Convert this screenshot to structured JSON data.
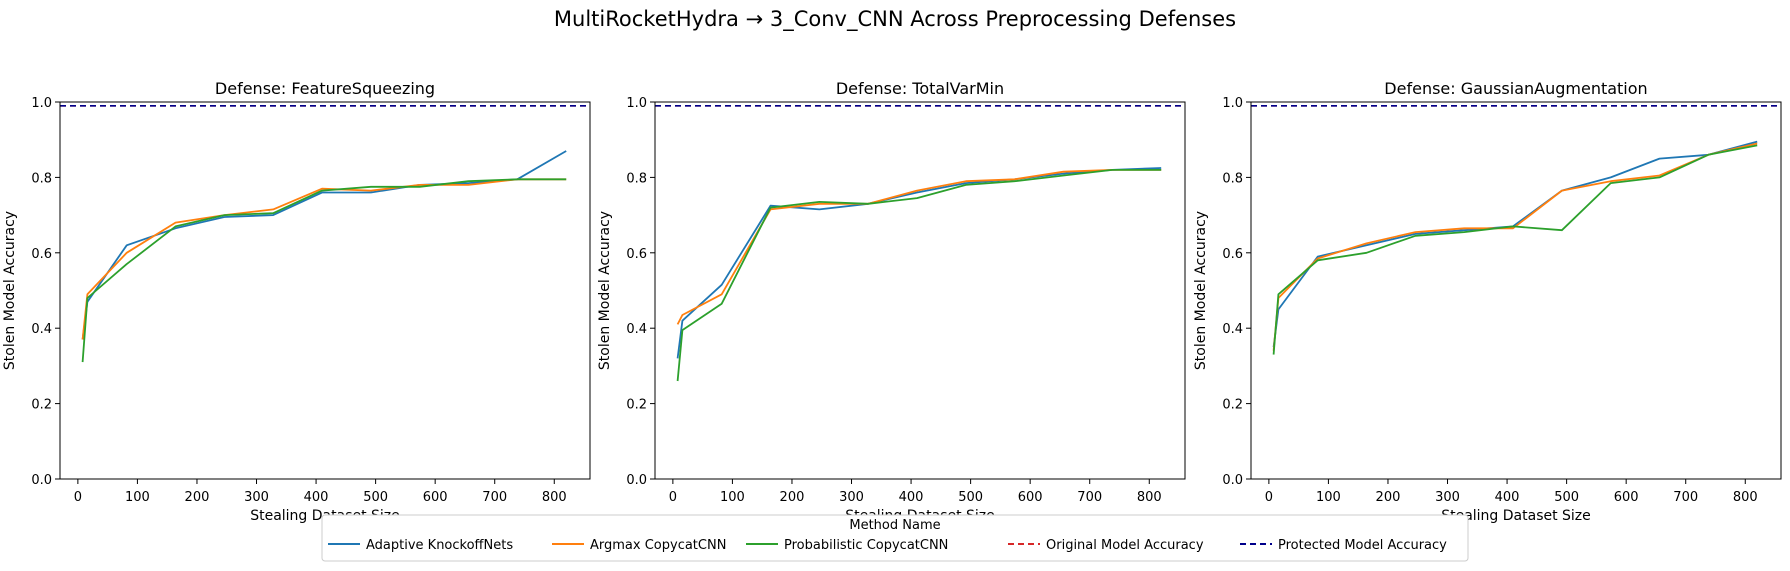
{
  "figure": {
    "title": "MultiRocketHydra → 3_Conv_CNN Across Preprocessing Defenses"
  },
  "legend": {
    "title": "Method Name",
    "entries": [
      {
        "label": "Adaptive KnockoffNets",
        "color": "#1f77b4",
        "style": "solid"
      },
      {
        "label": "Argmax CopycatCNN",
        "color": "#ff7f0e",
        "style": "solid"
      },
      {
        "label": "Probabilistic CopycatCNN",
        "color": "#2ca02c",
        "style": "solid"
      },
      {
        "label": "Original Model Accuracy",
        "color": "#d62728",
        "style": "dashed"
      },
      {
        "label": "Protected Model Accuracy",
        "color": "#00008b",
        "style": "dashed"
      }
    ]
  },
  "chart_data": [
    {
      "type": "line",
      "title": "Defense: FeatureSqueezing",
      "xlabel": "Stealing Dataset Size",
      "ylabel": "Stolen Model Accuracy",
      "xlim": [
        -30,
        860
      ],
      "ylim": [
        0.0,
        1.0
      ],
      "xticks": [
        0,
        100,
        200,
        300,
        400,
        500,
        600,
        700,
        800
      ],
      "yticks": [
        0.0,
        0.2,
        0.4,
        0.6,
        0.8,
        1.0
      ],
      "grid": false,
      "series": [
        {
          "name": "Adaptive KnockoffNets",
          "color": "#1f77b4",
          "x": [
            8,
            16,
            82,
            164,
            246,
            328,
            410,
            492,
            574,
            656,
            738,
            820
          ],
          "y": [
            0.37,
            0.47,
            0.62,
            0.665,
            0.695,
            0.7,
            0.76,
            0.76,
            0.78,
            0.785,
            0.795,
            0.87
          ]
        },
        {
          "name": "Argmax CopycatCNN",
          "color": "#ff7f0e",
          "x": [
            8,
            16,
            82,
            164,
            246,
            328,
            410,
            492,
            574,
            656,
            738,
            820
          ],
          "y": [
            0.37,
            0.49,
            0.6,
            0.68,
            0.7,
            0.715,
            0.77,
            0.765,
            0.78,
            0.78,
            0.795,
            0.795
          ]
        },
        {
          "name": "Probabilistic CopycatCNN",
          "color": "#2ca02c",
          "x": [
            8,
            16,
            82,
            164,
            246,
            328,
            410,
            492,
            574,
            656,
            738,
            820
          ],
          "y": [
            0.31,
            0.48,
            0.57,
            0.67,
            0.7,
            0.705,
            0.765,
            0.775,
            0.775,
            0.79,
            0.795,
            0.795
          ]
        }
      ],
      "hlines": [
        {
          "name": "Original Model Accuracy",
          "y": 0.99,
          "color": "#d62728"
        },
        {
          "name": "Protected Model Accuracy",
          "y": 0.99,
          "color": "#00008b"
        }
      ]
    },
    {
      "type": "line",
      "title": "Defense: TotalVarMin",
      "xlabel": "Stealing Dataset Size",
      "ylabel": "Stolen Model Accuracy",
      "xlim": [
        -30,
        860
      ],
      "ylim": [
        0.0,
        1.0
      ],
      "xticks": [
        0,
        100,
        200,
        300,
        400,
        500,
        600,
        700,
        800
      ],
      "yticks": [
        0.0,
        0.2,
        0.4,
        0.6,
        0.8,
        1.0
      ],
      "grid": false,
      "series": [
        {
          "name": "Adaptive KnockoffNets",
          "color": "#1f77b4",
          "x": [
            8,
            16,
            82,
            164,
            246,
            328,
            410,
            492,
            574,
            656,
            738,
            820
          ],
          "y": [
            0.32,
            0.42,
            0.515,
            0.725,
            0.715,
            0.73,
            0.76,
            0.785,
            0.795,
            0.81,
            0.82,
            0.825
          ]
        },
        {
          "name": "Argmax CopycatCNN",
          "color": "#ff7f0e",
          "x": [
            8,
            16,
            82,
            164,
            246,
            328,
            410,
            492,
            574,
            656,
            738,
            820
          ],
          "y": [
            0.41,
            0.435,
            0.49,
            0.715,
            0.73,
            0.73,
            0.765,
            0.79,
            0.795,
            0.815,
            0.82,
            0.82
          ]
        },
        {
          "name": "Probabilistic CopycatCNN",
          "color": "#2ca02c",
          "x": [
            8,
            16,
            82,
            164,
            246,
            328,
            410,
            492,
            574,
            656,
            738,
            820
          ],
          "y": [
            0.26,
            0.395,
            0.465,
            0.72,
            0.735,
            0.73,
            0.745,
            0.78,
            0.79,
            0.805,
            0.82,
            0.82
          ]
        }
      ],
      "hlines": [
        {
          "name": "Original Model Accuracy",
          "y": 0.99,
          "color": "#d62728"
        },
        {
          "name": "Protected Model Accuracy",
          "y": 0.99,
          "color": "#00008b"
        }
      ]
    },
    {
      "type": "line",
      "title": "Defense: GaussianAugmentation",
      "xlabel": "Stealing Dataset Size",
      "ylabel": "Stolen Model Accuracy",
      "xlim": [
        -30,
        860
      ],
      "ylim": [
        0.0,
        1.0
      ],
      "xticks": [
        0,
        100,
        200,
        300,
        400,
        500,
        600,
        700,
        800
      ],
      "yticks": [
        0.0,
        0.2,
        0.4,
        0.6,
        0.8,
        1.0
      ],
      "grid": false,
      "series": [
        {
          "name": "Adaptive KnockoffNets",
          "color": "#1f77b4",
          "x": [
            8,
            16,
            82,
            164,
            246,
            328,
            410,
            492,
            574,
            656,
            738,
            820
          ],
          "y": [
            0.35,
            0.45,
            0.59,
            0.62,
            0.65,
            0.66,
            0.67,
            0.765,
            0.8,
            0.85,
            0.86,
            0.895
          ]
        },
        {
          "name": "Argmax CopycatCNN",
          "color": "#ff7f0e",
          "x": [
            8,
            16,
            82,
            164,
            246,
            328,
            410,
            492,
            574,
            656,
            738,
            820
          ],
          "y": [
            0.34,
            0.48,
            0.585,
            0.625,
            0.655,
            0.665,
            0.665,
            0.765,
            0.79,
            0.805,
            0.86,
            0.89
          ]
        },
        {
          "name": "Probabilistic CopycatCNN",
          "color": "#2ca02c",
          "x": [
            8,
            16,
            82,
            164,
            246,
            328,
            410,
            492,
            574,
            656,
            738,
            820
          ],
          "y": [
            0.33,
            0.49,
            0.58,
            0.6,
            0.645,
            0.655,
            0.67,
            0.66,
            0.785,
            0.8,
            0.86,
            0.885
          ]
        }
      ],
      "hlines": [
        {
          "name": "Original Model Accuracy",
          "y": 0.99,
          "color": "#d62728"
        },
        {
          "name": "Protected Model Accuracy",
          "y": 0.99,
          "color": "#00008b"
        }
      ]
    }
  ]
}
